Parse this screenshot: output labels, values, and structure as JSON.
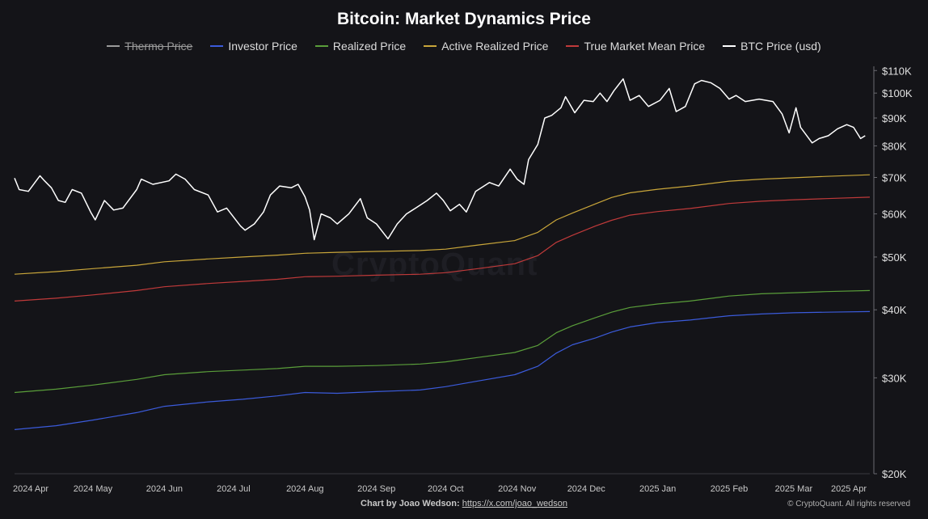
{
  "chart_data": {
    "type": "line",
    "title": "Bitcoin: Market Dynamics Price",
    "yscale": "log",
    "ylim": [
      20000,
      112000
    ],
    "xlim": [
      "2024-03-28",
      "2025-04-03"
    ],
    "y_ticks": [
      {
        "value": 110000,
        "label": "$110K"
      },
      {
        "value": 100000,
        "label": "$100K"
      },
      {
        "value": 90000,
        "label": "$90K"
      },
      {
        "value": 80000,
        "label": "$80K"
      },
      {
        "value": 70000,
        "label": "$70K"
      },
      {
        "value": 60000,
        "label": "$60K"
      },
      {
        "value": 50000,
        "label": "$50K"
      },
      {
        "value": 40000,
        "label": "$40K"
      },
      {
        "value": 30000,
        "label": "$30K"
      },
      {
        "value": 20000,
        "label": "$20K"
      }
    ],
    "x_ticks": [
      {
        "value": "2024-04-01",
        "label": "2024 Apr"
      },
      {
        "value": "2024-05-01",
        "label": "2024 May"
      },
      {
        "value": "2024-06-01",
        "label": "2024 Jun"
      },
      {
        "value": "2024-07-01",
        "label": "2024 Jul"
      },
      {
        "value": "2024-08-01",
        "label": "2024 Aug"
      },
      {
        "value": "2024-09-01",
        "label": "2024 Sep"
      },
      {
        "value": "2024-10-01",
        "label": "2024 Oct"
      },
      {
        "value": "2024-11-01",
        "label": "2024 Nov"
      },
      {
        "value": "2024-12-01",
        "label": "2024 Dec"
      },
      {
        "value": "2025-01-01",
        "label": "2025 Jan"
      },
      {
        "value": "2025-02-01",
        "label": "2025 Feb"
      },
      {
        "value": "2025-03-01",
        "label": "2025 Mar"
      },
      {
        "value": "2025-04-01",
        "label": "2025 Apr"
      }
    ],
    "grid": false,
    "legend_position": "top-center",
    "series": [
      {
        "name": "Thermo Price",
        "color": "#9a9a9a",
        "visible": false,
        "points": []
      },
      {
        "name": "Investor Price",
        "color": "#3b5bdb",
        "visible": true,
        "points": [
          [
            "2024-03-28",
            24100
          ],
          [
            "2024-04-15",
            24500
          ],
          [
            "2024-05-01",
            25100
          ],
          [
            "2024-05-20",
            25900
          ],
          [
            "2024-06-01",
            26600
          ],
          [
            "2024-06-20",
            27100
          ],
          [
            "2024-07-05",
            27400
          ],
          [
            "2024-07-20",
            27800
          ],
          [
            "2024-08-01",
            28200
          ],
          [
            "2024-08-15",
            28100
          ],
          [
            "2024-09-01",
            28300
          ],
          [
            "2024-09-20",
            28500
          ],
          [
            "2024-10-01",
            28900
          ],
          [
            "2024-10-15",
            29600
          ],
          [
            "2024-10-31",
            30400
          ],
          [
            "2024-11-10",
            31500
          ],
          [
            "2024-11-18",
            33300
          ],
          [
            "2024-11-25",
            34500
          ],
          [
            "2024-12-05",
            35500
          ],
          [
            "2024-12-12",
            36400
          ],
          [
            "2024-12-20",
            37200
          ],
          [
            "2025-01-01",
            37900
          ],
          [
            "2025-01-15",
            38300
          ],
          [
            "2025-02-01",
            39000
          ],
          [
            "2025-02-15",
            39300
          ],
          [
            "2025-03-01",
            39500
          ],
          [
            "2025-03-15",
            39600
          ],
          [
            "2025-04-03",
            39700
          ]
        ]
      },
      {
        "name": "Realized Price",
        "color": "#5a9e3a",
        "visible": true,
        "points": [
          [
            "2024-03-28",
            28200
          ],
          [
            "2024-04-15",
            28600
          ],
          [
            "2024-05-01",
            29100
          ],
          [
            "2024-05-20",
            29800
          ],
          [
            "2024-06-01",
            30400
          ],
          [
            "2024-06-20",
            30800
          ],
          [
            "2024-07-05",
            31000
          ],
          [
            "2024-07-20",
            31200
          ],
          [
            "2024-08-01",
            31500
          ],
          [
            "2024-08-15",
            31500
          ],
          [
            "2024-09-01",
            31600
          ],
          [
            "2024-09-20",
            31800
          ],
          [
            "2024-10-01",
            32100
          ],
          [
            "2024-10-15",
            32700
          ],
          [
            "2024-10-31",
            33400
          ],
          [
            "2024-11-10",
            34400
          ],
          [
            "2024-11-18",
            36300
          ],
          [
            "2024-11-25",
            37400
          ],
          [
            "2024-12-05",
            38700
          ],
          [
            "2024-12-12",
            39600
          ],
          [
            "2024-12-20",
            40400
          ],
          [
            "2025-01-01",
            41000
          ],
          [
            "2025-01-15",
            41500
          ],
          [
            "2025-02-01",
            42400
          ],
          [
            "2025-02-15",
            42800
          ],
          [
            "2025-03-01",
            43000
          ],
          [
            "2025-03-15",
            43200
          ],
          [
            "2025-04-03",
            43400
          ]
        ]
      },
      {
        "name": "Active Realized Price",
        "color": "#c9a63a",
        "visible": true,
        "points": [
          [
            "2024-03-28",
            46500
          ],
          [
            "2024-04-15",
            47000
          ],
          [
            "2024-05-01",
            47600
          ],
          [
            "2024-05-20",
            48300
          ],
          [
            "2024-06-01",
            49000
          ],
          [
            "2024-06-20",
            49600
          ],
          [
            "2024-07-05",
            50000
          ],
          [
            "2024-07-20",
            50400
          ],
          [
            "2024-08-01",
            50800
          ],
          [
            "2024-08-15",
            51000
          ],
          [
            "2024-09-01",
            51200
          ],
          [
            "2024-09-20",
            51400
          ],
          [
            "2024-10-01",
            51700
          ],
          [
            "2024-10-15",
            52600
          ],
          [
            "2024-10-31",
            53600
          ],
          [
            "2024-11-10",
            55500
          ],
          [
            "2024-11-18",
            58500
          ],
          [
            "2024-11-25",
            60200
          ],
          [
            "2024-12-05",
            62600
          ],
          [
            "2024-12-12",
            64300
          ],
          [
            "2024-12-20",
            65600
          ],
          [
            "2025-01-01",
            66600
          ],
          [
            "2025-01-15",
            67500
          ],
          [
            "2025-02-01",
            68900
          ],
          [
            "2025-02-15",
            69500
          ],
          [
            "2025-03-01",
            69900
          ],
          [
            "2025-03-15",
            70300
          ],
          [
            "2025-04-03",
            70800
          ]
        ]
      },
      {
        "name": "True Market Mean Price",
        "color": "#c03a3a",
        "visible": true,
        "points": [
          [
            "2024-03-28",
            41500
          ],
          [
            "2024-04-15",
            42000
          ],
          [
            "2024-05-01",
            42600
          ],
          [
            "2024-05-20",
            43400
          ],
          [
            "2024-06-01",
            44100
          ],
          [
            "2024-06-20",
            44700
          ],
          [
            "2024-07-05",
            45100
          ],
          [
            "2024-07-20",
            45500
          ],
          [
            "2024-08-01",
            46000
          ],
          [
            "2024-08-15",
            46100
          ],
          [
            "2024-09-01",
            46300
          ],
          [
            "2024-09-20",
            46500
          ],
          [
            "2024-10-01",
            46800
          ],
          [
            "2024-10-15",
            47600
          ],
          [
            "2024-10-31",
            48600
          ],
          [
            "2024-11-10",
            50300
          ],
          [
            "2024-11-18",
            53200
          ],
          [
            "2024-11-25",
            54800
          ],
          [
            "2024-12-05",
            57000
          ],
          [
            "2024-12-12",
            58400
          ],
          [
            "2024-12-20",
            59700
          ],
          [
            "2025-01-01",
            60600
          ],
          [
            "2025-01-15",
            61400
          ],
          [
            "2025-02-01",
            62700
          ],
          [
            "2025-02-15",
            63300
          ],
          [
            "2025-03-01",
            63700
          ],
          [
            "2025-03-15",
            64000
          ],
          [
            "2025-04-03",
            64400
          ]
        ]
      },
      {
        "name": "BTC Price (usd)",
        "color": "#ffffff",
        "visible": true,
        "points": [
          [
            "2024-03-28",
            69800
          ],
          [
            "2024-03-30",
            66500
          ],
          [
            "2024-04-03",
            66000
          ],
          [
            "2024-04-08",
            70500
          ],
          [
            "2024-04-10",
            69000
          ],
          [
            "2024-04-13",
            67000
          ],
          [
            "2024-04-16",
            63500
          ],
          [
            "2024-04-19",
            63000
          ],
          [
            "2024-04-22",
            66500
          ],
          [
            "2024-04-26",
            65500
          ],
          [
            "2024-04-30",
            60500
          ],
          [
            "2024-05-02",
            58500
          ],
          [
            "2024-05-06",
            63500
          ],
          [
            "2024-05-10",
            61000
          ],
          [
            "2024-05-14",
            61500
          ],
          [
            "2024-05-20",
            66500
          ],
          [
            "2024-05-22",
            69500
          ],
          [
            "2024-05-27",
            68000
          ],
          [
            "2024-06-03",
            69000
          ],
          [
            "2024-06-06",
            71000
          ],
          [
            "2024-06-10",
            69500
          ],
          [
            "2024-06-14",
            66500
          ],
          [
            "2024-06-20",
            65000
          ],
          [
            "2024-06-24",
            60500
          ],
          [
            "2024-06-28",
            61500
          ],
          [
            "2024-07-04",
            57000
          ],
          [
            "2024-07-06",
            56000
          ],
          [
            "2024-07-10",
            57500
          ],
          [
            "2024-07-14",
            60500
          ],
          [
            "2024-07-17",
            65000
          ],
          [
            "2024-07-21",
            67500
          ],
          [
            "2024-07-26",
            67000
          ],
          [
            "2024-07-29",
            68000
          ],
          [
            "2024-08-01",
            64500
          ],
          [
            "2024-08-03",
            61000
          ],
          [
            "2024-08-05",
            53800
          ],
          [
            "2024-08-08",
            60000
          ],
          [
            "2024-08-12",
            59000
          ],
          [
            "2024-08-15",
            57500
          ],
          [
            "2024-08-20",
            60000
          ],
          [
            "2024-08-25",
            64000
          ],
          [
            "2024-08-28",
            59000
          ],
          [
            "2024-09-01",
            57500
          ],
          [
            "2024-09-06",
            54000
          ],
          [
            "2024-09-10",
            57500
          ],
          [
            "2024-09-14",
            60000
          ],
          [
            "2024-09-18",
            61500
          ],
          [
            "2024-09-23",
            63500
          ],
          [
            "2024-09-27",
            65500
          ],
          [
            "2024-09-30",
            63500
          ],
          [
            "2024-10-03",
            60800
          ],
          [
            "2024-10-07",
            62500
          ],
          [
            "2024-10-10",
            60500
          ],
          [
            "2024-10-14",
            66000
          ],
          [
            "2024-10-20",
            68500
          ],
          [
            "2024-10-24",
            67500
          ],
          [
            "2024-10-29",
            72500
          ],
          [
            "2024-11-01",
            69500
          ],
          [
            "2024-11-04",
            68000
          ],
          [
            "2024-11-06",
            75500
          ],
          [
            "2024-11-10",
            80500
          ],
          [
            "2024-11-13",
            90000
          ],
          [
            "2024-11-16",
            91000
          ],
          [
            "2024-11-20",
            94000
          ],
          [
            "2024-11-22",
            98500
          ],
          [
            "2024-11-26",
            92000
          ],
          [
            "2024-11-30",
            97000
          ],
          [
            "2024-12-04",
            96500
          ],
          [
            "2024-12-07",
            100000
          ],
          [
            "2024-12-10",
            96500
          ],
          [
            "2024-12-13",
            101000
          ],
          [
            "2024-12-17",
            106200
          ],
          [
            "2024-12-20",
            97000
          ],
          [
            "2024-12-24",
            99000
          ],
          [
            "2024-12-28",
            94500
          ],
          [
            "2025-01-02",
            97000
          ],
          [
            "2025-01-06",
            102000
          ],
          [
            "2025-01-09",
            92500
          ],
          [
            "2025-01-13",
            94500
          ],
          [
            "2025-01-17",
            104000
          ],
          [
            "2025-01-20",
            105500
          ],
          [
            "2025-01-24",
            104500
          ],
          [
            "2025-01-28",
            102000
          ],
          [
            "2025-02-01",
            97500
          ],
          [
            "2025-02-04",
            99000
          ],
          [
            "2025-02-08",
            96500
          ],
          [
            "2025-02-14",
            97500
          ],
          [
            "2025-02-20",
            96500
          ],
          [
            "2025-02-24",
            91500
          ],
          [
            "2025-02-27",
            84500
          ],
          [
            "2025-03-02",
            94000
          ],
          [
            "2025-03-04",
            86500
          ],
          [
            "2025-03-09",
            81000
          ],
          [
            "2025-03-12",
            82500
          ],
          [
            "2025-03-16",
            83500
          ],
          [
            "2025-03-20",
            86000
          ],
          [
            "2025-03-24",
            87500
          ],
          [
            "2025-03-27",
            86500
          ],
          [
            "2025-03-30",
            82500
          ],
          [
            "2025-04-01",
            83500
          ]
        ]
      }
    ]
  },
  "footer": {
    "credit_prefix": "Chart by Joao Wedson:",
    "credit_link": "https://x.com/joao_wedson",
    "copyright": "© CryptoQuant. All rights reserved"
  },
  "watermark": "CryptoQuant"
}
